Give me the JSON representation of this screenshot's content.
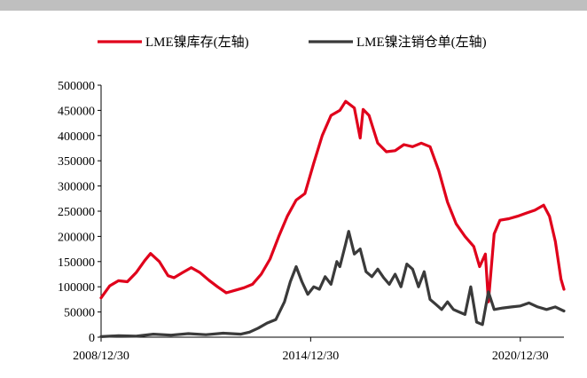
{
  "chart_data": {
    "type": "line",
    "title": "",
    "xlabel": "",
    "ylabel": "",
    "x_ticks": [
      "2008/12/30",
      "2014/12/30",
      "2020/12/30"
    ],
    "xlim": [
      "2008/12/30",
      "2022/03/31"
    ],
    "ylim": [
      0,
      500000
    ],
    "y_ticks": [
      0,
      50000,
      100000,
      150000,
      200000,
      250000,
      300000,
      350000,
      400000,
      450000,
      500000
    ],
    "y_tick_labels": [
      "0",
      "50000",
      "100000",
      "150000",
      "200000",
      "250000",
      "300000",
      "350000",
      "400000",
      "450000",
      "500000"
    ],
    "grid": false,
    "legend_position": "top",
    "series": [
      {
        "name": "LME镍库存(左轴)",
        "color": "#e0001b",
        "points": [
          [
            "2008/12/30",
            78000
          ],
          [
            "2009/03/31",
            102000
          ],
          [
            "2009/06/30",
            112000
          ],
          [
            "2009/09/30",
            110000
          ],
          [
            "2009/12/31",
            128000
          ],
          [
            "2010/03/31",
            152000
          ],
          [
            "2010/05/31",
            166000
          ],
          [
            "2010/08/31",
            150000
          ],
          [
            "2010/11/30",
            122000
          ],
          [
            "2011/01/31",
            118000
          ],
          [
            "2011/04/30",
            128000
          ],
          [
            "2011/07/31",
            138000
          ],
          [
            "2011/10/31",
            128000
          ],
          [
            "2012/01/31",
            113000
          ],
          [
            "2012/04/30",
            100000
          ],
          [
            "2012/07/31",
            88000
          ],
          [
            "2012/10/31",
            93000
          ],
          [
            "2013/01/31",
            98000
          ],
          [
            "2013/04/30",
            105000
          ],
          [
            "2013/07/31",
            125000
          ],
          [
            "2013/10/31",
            155000
          ],
          [
            "2014/01/31",
            200000
          ],
          [
            "2014/04/30",
            240000
          ],
          [
            "2014/07/31",
            272000
          ],
          [
            "2014/10/31",
            285000
          ],
          [
            "2015/01/31",
            345000
          ],
          [
            "2015/04/30",
            400000
          ],
          [
            "2015/07/31",
            440000
          ],
          [
            "2015/10/31",
            450000
          ],
          [
            "2015/12/31",
            468000
          ],
          [
            "2016/03/31",
            455000
          ],
          [
            "2016/05/31",
            395000
          ],
          [
            "2016/06/30",
            452000
          ],
          [
            "2016/08/31",
            440000
          ],
          [
            "2016/11/30",
            385000
          ],
          [
            "2017/02/28",
            368000
          ],
          [
            "2017/05/31",
            370000
          ],
          [
            "2017/08/31",
            382000
          ],
          [
            "2017/11/30",
            378000
          ],
          [
            "2018/02/28",
            385000
          ],
          [
            "2018/05/31",
            378000
          ],
          [
            "2018/08/31",
            330000
          ],
          [
            "2018/11/30",
            268000
          ],
          [
            "2019/02/28",
            225000
          ],
          [
            "2019/05/31",
            200000
          ],
          [
            "2019/08/31",
            180000
          ],
          [
            "2019/10/31",
            140000
          ],
          [
            "2019/12/31",
            165000
          ],
          [
            "2020/01/31",
            70000
          ],
          [
            "2020/03/31",
            205000
          ],
          [
            "2020/05/31",
            232000
          ],
          [
            "2020/08/31",
            235000
          ],
          [
            "2020/11/30",
            240000
          ],
          [
            "2021/02/28",
            246000
          ],
          [
            "2021/05/31",
            252000
          ],
          [
            "2021/08/31",
            262000
          ],
          [
            "2021/10/31",
            240000
          ],
          [
            "2021/12/31",
            190000
          ],
          [
            "2022/02/28",
            115000
          ],
          [
            "2022/03/31",
            95000
          ]
        ]
      },
      {
        "name": "LME镍注销仓单(左轴)",
        "color": "#3a3a3a",
        "points": [
          [
            "2008/12/30",
            1000
          ],
          [
            "2009/06/30",
            3000
          ],
          [
            "2009/12/31",
            2000
          ],
          [
            "2010/06/30",
            6000
          ],
          [
            "2010/12/31",
            4000
          ],
          [
            "2011/06/30",
            7000
          ],
          [
            "2011/12/31",
            5000
          ],
          [
            "2012/06/30",
            8000
          ],
          [
            "2012/12/31",
            6000
          ],
          [
            "2013/03/31",
            10000
          ],
          [
            "2013/06/30",
            18000
          ],
          [
            "2013/09/30",
            28000
          ],
          [
            "2013/12/31",
            35000
          ],
          [
            "2014/03/31",
            70000
          ],
          [
            "2014/05/31",
            110000
          ],
          [
            "2014/07/31",
            140000
          ],
          [
            "2014/09/30",
            110000
          ],
          [
            "2014/11/30",
            85000
          ],
          [
            "2015/01/31",
            100000
          ],
          [
            "2015/03/31",
            95000
          ],
          [
            "2015/05/31",
            120000
          ],
          [
            "2015/07/31",
            105000
          ],
          [
            "2015/09/30",
            150000
          ],
          [
            "2015/10/31",
            140000
          ],
          [
            "2015/12/31",
            185000
          ],
          [
            "2016/01/31",
            210000
          ],
          [
            "2016/03/31",
            165000
          ],
          [
            "2016/05/31",
            175000
          ],
          [
            "2016/07/31",
            130000
          ],
          [
            "2016/09/30",
            120000
          ],
          [
            "2016/11/30",
            135000
          ],
          [
            "2017/01/31",
            118000
          ],
          [
            "2017/03/31",
            105000
          ],
          [
            "2017/05/31",
            125000
          ],
          [
            "2017/07/31",
            100000
          ],
          [
            "2017/09/30",
            145000
          ],
          [
            "2017/11/30",
            135000
          ],
          [
            "2018/01/31",
            100000
          ],
          [
            "2018/03/31",
            130000
          ],
          [
            "2018/05/31",
            75000
          ],
          [
            "2018/07/31",
            65000
          ],
          [
            "2018/09/30",
            55000
          ],
          [
            "2018/11/30",
            70000
          ],
          [
            "2019/01/31",
            55000
          ],
          [
            "2019/03/31",
            50000
          ],
          [
            "2019/05/31",
            45000
          ],
          [
            "2019/07/31",
            100000
          ],
          [
            "2019/09/30",
            30000
          ],
          [
            "2019/11/30",
            25000
          ],
          [
            "2020/01/31",
            90000
          ],
          [
            "2020/03/31",
            55000
          ],
          [
            "2020/06/30",
            58000
          ],
          [
            "2020/09/30",
            60000
          ],
          [
            "2020/12/31",
            62000
          ],
          [
            "2021/03/31",
            68000
          ],
          [
            "2021/06/30",
            60000
          ],
          [
            "2021/09/30",
            55000
          ],
          [
            "2021/12/31",
            60000
          ],
          [
            "2022/03/31",
            52000
          ]
        ]
      }
    ]
  }
}
